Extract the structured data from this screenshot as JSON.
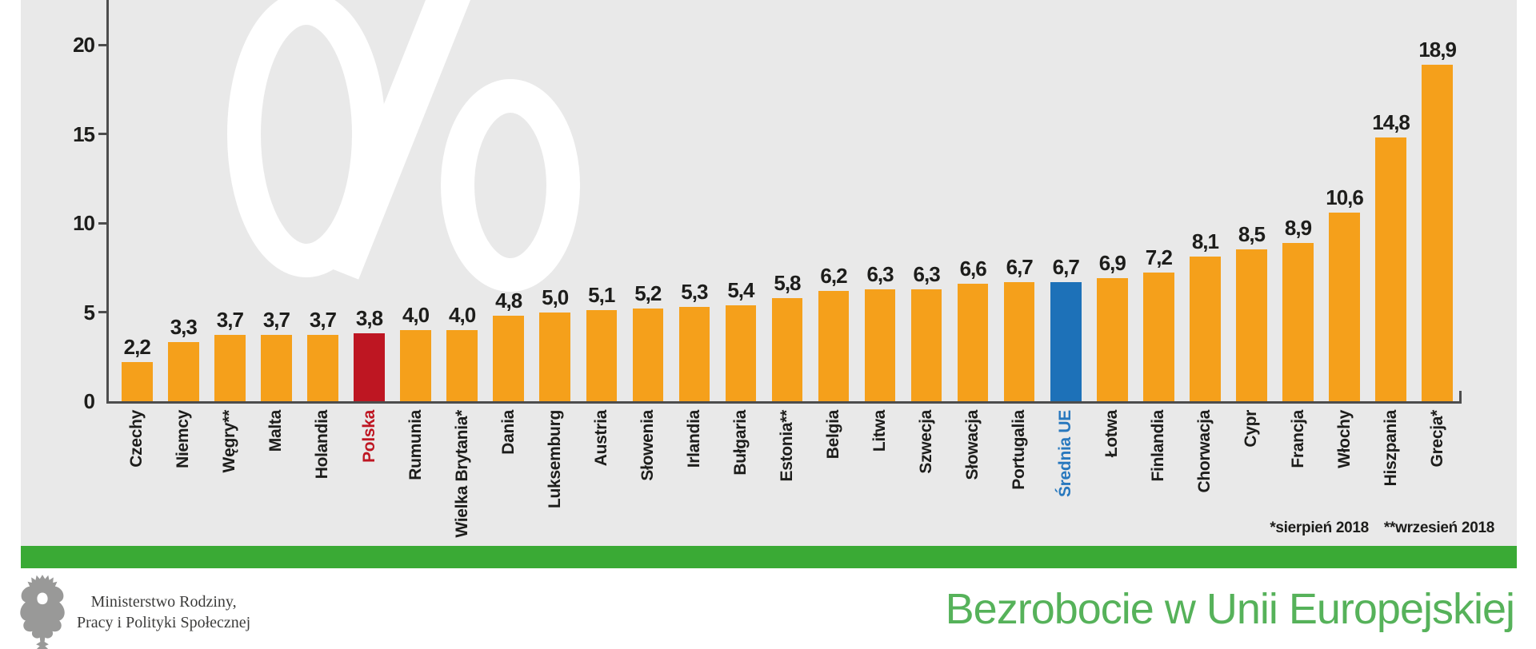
{
  "chart_data": {
    "type": "bar",
    "title": "Bezrobocie w Unii Europejskiej",
    "unit": "%",
    "xlabel": "",
    "ylabel": "%",
    "ylim": [
      0,
      22
    ],
    "yticks": [
      0,
      5,
      10,
      15,
      20
    ],
    "grid": false,
    "legend": "none",
    "highlight_note": "Polska bar red, Średnia UE bar blue, all others orange",
    "footnotes": [
      "*sierpień 2018",
      "**wrzesień 2018"
    ],
    "series": [
      {
        "label": "Czechy",
        "value": 2.2,
        "display": "2,2",
        "color": "orange"
      },
      {
        "label": "Niemcy",
        "value": 3.3,
        "display": "3,3",
        "color": "orange"
      },
      {
        "label": "Węgry**",
        "value": 3.7,
        "display": "3,7",
        "color": "orange"
      },
      {
        "label": "Malta",
        "value": 3.7,
        "display": "3,7",
        "color": "orange"
      },
      {
        "label": "Holandia",
        "value": 3.7,
        "display": "3,7",
        "color": "orange"
      },
      {
        "label": "Polska",
        "value": 3.8,
        "display": "3,8",
        "color": "red"
      },
      {
        "label": "Rumunia",
        "value": 4.0,
        "display": "4,0",
        "color": "orange"
      },
      {
        "label": "Wielka Brytania*",
        "value": 4.0,
        "display": "4,0",
        "color": "orange"
      },
      {
        "label": "Dania",
        "value": 4.8,
        "display": "4,8",
        "color": "orange"
      },
      {
        "label": "Luksemburg",
        "value": 5.0,
        "display": "5,0",
        "color": "orange"
      },
      {
        "label": "Austria",
        "value": 5.1,
        "display": "5,1",
        "color": "orange"
      },
      {
        "label": "Słowenia",
        "value": 5.2,
        "display": "5,2",
        "color": "orange"
      },
      {
        "label": "Irlandia",
        "value": 5.3,
        "display": "5,3",
        "color": "orange"
      },
      {
        "label": "Bułgaria",
        "value": 5.4,
        "display": "5,4",
        "color": "orange"
      },
      {
        "label": "Estonia**",
        "value": 5.8,
        "display": "5,8",
        "color": "orange"
      },
      {
        "label": "Belgia",
        "value": 6.2,
        "display": "6,2",
        "color": "orange"
      },
      {
        "label": "Litwa",
        "value": 6.3,
        "display": "6,3",
        "color": "orange"
      },
      {
        "label": "Szwecja",
        "value": 6.3,
        "display": "6,3",
        "color": "orange"
      },
      {
        "label": "Słowacja",
        "value": 6.6,
        "display": "6,6",
        "color": "orange"
      },
      {
        "label": "Portugalia",
        "value": 6.7,
        "display": "6,7",
        "color": "orange"
      },
      {
        "label": "Średnia UE",
        "value": 6.7,
        "display": "6,7",
        "color": "blue"
      },
      {
        "label": "Łotwa",
        "value": 6.9,
        "display": "6,9",
        "color": "orange"
      },
      {
        "label": "Finlandia",
        "value": 7.2,
        "display": "7,2",
        "color": "orange"
      },
      {
        "label": "Chorwacja",
        "value": 8.1,
        "display": "8,1",
        "color": "orange"
      },
      {
        "label": "Cypr",
        "value": 8.5,
        "display": "8,5",
        "color": "orange"
      },
      {
        "label": "Francja",
        "value": 8.9,
        "display": "8,9",
        "color": "orange"
      },
      {
        "label": "Włochy",
        "value": 10.6,
        "display": "10,6",
        "color": "orange"
      },
      {
        "label": "Hiszpania",
        "value": 14.8,
        "display": "14,8",
        "color": "orange"
      },
      {
        "label": "Grecja*",
        "value": 18.9,
        "display": "18,9",
        "color": "orange"
      }
    ]
  },
  "footer": {
    "ministry_line1": "Ministerstwo Rodziny,",
    "ministry_line2": "Pracy i Polityki Społecznej"
  },
  "colors": {
    "panel_bg": "#e9e9e9",
    "watermark": "#ffffff",
    "bar_orange": "#f5a01b",
    "bar_red": "#be1622",
    "bar_blue": "#1d71b8",
    "label_red": "#be1622",
    "label_blue": "#2878be",
    "text_dark": "#1d1d1b",
    "axis": "#4d4d4d",
    "green_strip": "#3aaa35",
    "title_green": "#56b25a",
    "eagle_gray": "#999998"
  }
}
